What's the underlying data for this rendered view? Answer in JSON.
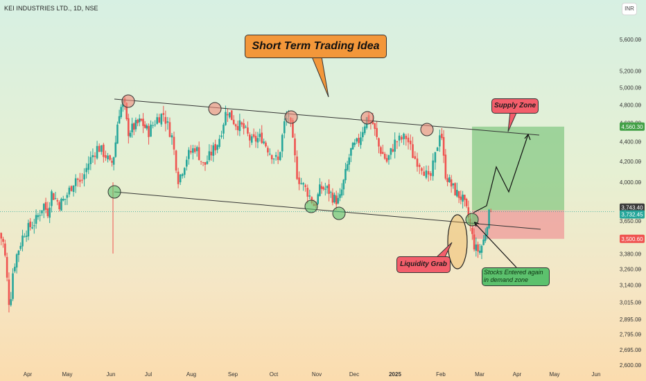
{
  "symbol_title": "KEI INDUSTRIES LTD., 1D, NSE",
  "currency": "INR",
  "annotations": {
    "title": "Short Term Trading Idea",
    "supply_zone": "Supply Zone",
    "liquidity_grab": "Liquidity Grab",
    "stocks_entered": "Stocks Entered again in demand zone"
  },
  "colors": {
    "bull": "#26a69a",
    "bear": "#ef5350",
    "profit_zone": "#66bb6a",
    "loss_zone": "#ef9a9a",
    "last_price": "#26a69a",
    "stop_tag": "#ef5350"
  },
  "chart_data": {
    "type": "candlestick",
    "title": "KEI INDUSTRIES LTD., 1D, NSE",
    "currency": "INR",
    "y_scale": "log",
    "ylim": [
      2600,
      5900
    ],
    "grid": false,
    "x_tick_labels": [
      "Apr",
      "May",
      "Jun",
      "Jul",
      "Aug",
      "Sep",
      "Oct",
      "Nov",
      "Dec",
      "2025",
      "Feb",
      "Mar",
      "Apr",
      "May",
      "Jun"
    ],
    "y_tick_labels": [
      "5,600.00",
      "5,200.00",
      "5,000.00",
      "4,800.00",
      "4,600.00",
      "4,400.00",
      "4,200.00",
      "4,000.00",
      "3,650.00",
      "3,500.00",
      "3,380.00",
      "3,260.00",
      "3,140.00",
      "3,015.00",
      "2,895.00",
      "2,795.00",
      "2,695.00",
      "2,600.00"
    ],
    "y_ticks": [
      5600,
      5200,
      5000,
      4800,
      4600,
      4400,
      4200,
      4000,
      3650,
      3500,
      3380,
      3260,
      3140,
      3015,
      2895,
      2795,
      2695,
      2600
    ],
    "price_tags": {
      "target": "4,560.30",
      "entry": "3,743.40",
      "last": "3,732.45",
      "stop": "3,500.60"
    },
    "key_points": [
      {
        "date": "Mar 2024",
        "close": 3550
      },
      {
        "date": "Apr 2024",
        "close": 3250
      },
      {
        "date": "Apr 2024",
        "close": 3650
      },
      {
        "date": "May 2024",
        "close": 4100
      },
      {
        "date": "Jun 2024",
        "close": 4850
      },
      {
        "date": "Jul 2024",
        "close": 4550
      },
      {
        "date": "Aug 2024",
        "close": 4750
      },
      {
        "date": "Sep 2024",
        "close": 4400
      },
      {
        "date": "Oct 2024",
        "close": 4700
      },
      {
        "date": "Nov 2024",
        "close": 3780
      },
      {
        "date": "Dec 2024",
        "close": 4650
      },
      {
        "date": "Jan 2025",
        "close": 4580
      },
      {
        "date": "Feb 2025",
        "close": 3400
      },
      {
        "date": "Feb 2025",
        "close": 3732.45
      }
    ],
    "resistance_line": [
      {
        "date": "Jun 2024",
        "price": 4880
      },
      {
        "date": "Apr 2025",
        "price": 4470
      }
    ],
    "support_line": [
      {
        "date": "Jun 2024",
        "price": 3920
      },
      {
        "date": "Mar 2025",
        "price": 3570
      }
    ],
    "long_position": {
      "entry": 3743.4,
      "target": 4560.3,
      "stop": 3500.6
    }
  }
}
